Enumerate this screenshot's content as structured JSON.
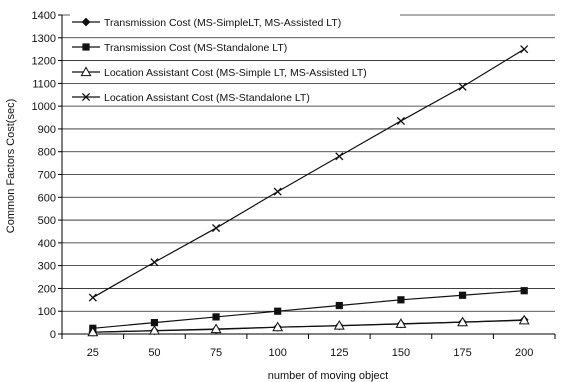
{
  "chart_data": {
    "type": "line",
    "xlabel": "number of moving object",
    "ylabel": "Common Factors Cost(sec)",
    "x": [
      25,
      50,
      75,
      100,
      125,
      150,
      175,
      200
    ],
    "ylim": [
      0,
      1400
    ],
    "yticks": [
      0,
      100,
      200,
      300,
      400,
      500,
      600,
      700,
      800,
      900,
      1000,
      1100,
      1200,
      1300,
      1400
    ],
    "grid": "horizontal",
    "legend_position": "top-left",
    "series": [
      {
        "name": "Transmission Cost (MS-SimpleLT, MS-Assisted LT)",
        "marker": "diamond",
        "values": [
          8,
          14,
          20,
          30,
          36,
          44,
          52,
          62
        ]
      },
      {
        "name": "Transmission Cost (MS-Standalone LT)",
        "marker": "square",
        "values": [
          25,
          50,
          75,
          100,
          125,
          150,
          170,
          190
        ]
      },
      {
        "name": "Location Assistant Cost (MS-Simple LT, MS-Assisted LT)",
        "marker": "triangle",
        "values": [
          8,
          15,
          22,
          30,
          37,
          45,
          52,
          60
        ]
      },
      {
        "name": "Location Assistant Cost (MS-Standalone LT)",
        "marker": "cross",
        "values": [
          160,
          315,
          465,
          625,
          780,
          935,
          1085,
          1250
        ]
      }
    ]
  }
}
